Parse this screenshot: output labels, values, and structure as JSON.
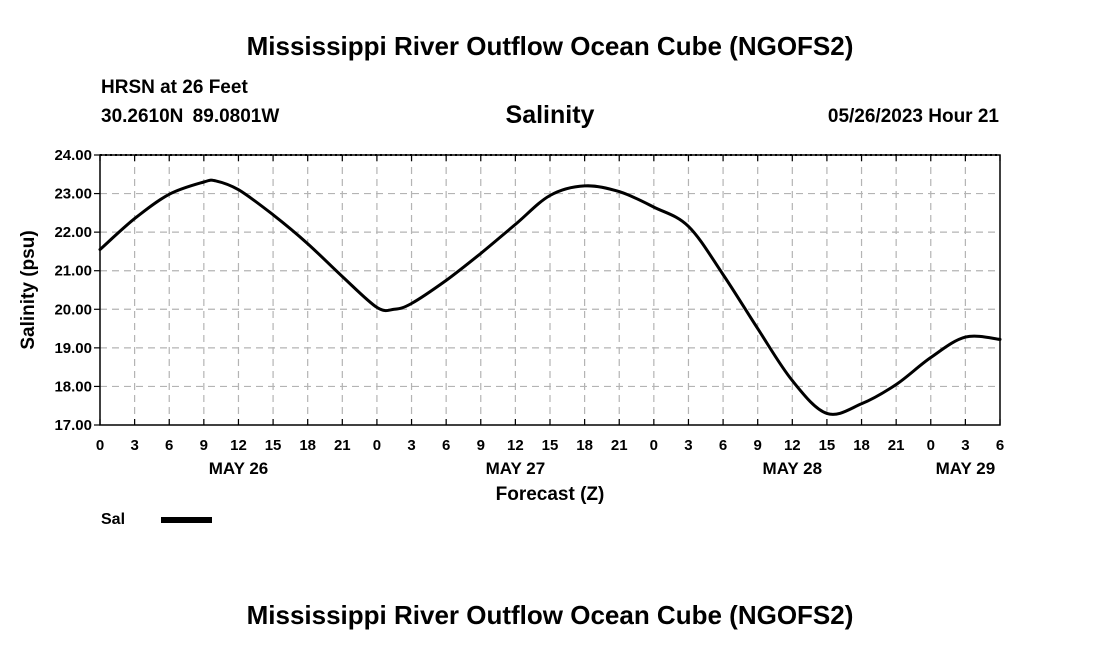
{
  "header": {
    "title": "Mississippi River Outflow Ocean Cube (NGOFS2)",
    "station": "HRSN at 26 Feet",
    "coords": "30.2610N  89.0801W",
    "subtitle": "Salinity",
    "forecast_time": "05/26/2023 Hour 21"
  },
  "footer": {
    "title": "Mississippi River Outflow Ocean Cube (NGOFS2)"
  },
  "legend": {
    "label": "Sal"
  },
  "colors": {
    "line": "#000000",
    "grid": "#b4b4b4",
    "background": "#ffffff"
  },
  "chart_data": {
    "type": "line",
    "title": "Salinity",
    "xlabel": "Forecast (Z)",
    "ylabel": "Salinity (psu)",
    "ylim": [
      17.0,
      24.0
    ],
    "xlim_hours": [
      0,
      78
    ],
    "y_ticks": [
      17.0,
      18.0,
      19.0,
      20.0,
      21.0,
      22.0,
      23.0,
      24.0
    ],
    "y_tick_labels": [
      "17.00",
      "18.00",
      "19.00",
      "20.00",
      "21.00",
      "22.00",
      "23.00",
      "24.00"
    ],
    "x_tick_hours": [
      0,
      3,
      6,
      9,
      12,
      15,
      18,
      21,
      24,
      27,
      30,
      33,
      36,
      39,
      42,
      45,
      48,
      51,
      54,
      57,
      60,
      63,
      66,
      69,
      72,
      75,
      78
    ],
    "x_tick_labels": [
      "0",
      "3",
      "6",
      "9",
      "12",
      "15",
      "18",
      "21",
      "0",
      "3",
      "6",
      "9",
      "12",
      "15",
      "18",
      "21",
      "0",
      "3",
      "6",
      "9",
      "12",
      "15",
      "18",
      "21",
      "0",
      "3",
      "6"
    ],
    "date_labels": [
      {
        "hour": 12,
        "label": "MAY 26"
      },
      {
        "hour": 36,
        "label": "MAY 27"
      },
      {
        "hour": 60,
        "label": "MAY 28"
      },
      {
        "hour": 75,
        "label": "MAY 29"
      }
    ],
    "grid": true,
    "series": [
      {
        "name": "Sal",
        "x_hours": [
          0,
          3,
          6,
          9,
          10,
          12,
          15,
          18,
          21,
          24,
          25.5,
          27,
          30,
          33,
          36,
          39,
          42,
          45,
          48,
          51,
          54,
          57,
          60,
          63,
          66,
          69,
          72,
          75,
          78
        ],
        "values": [
          21.55,
          22.35,
          22.98,
          23.3,
          23.33,
          23.1,
          22.45,
          21.7,
          20.85,
          20.05,
          20.0,
          20.15,
          20.75,
          21.45,
          22.2,
          22.95,
          23.2,
          23.05,
          22.65,
          22.15,
          20.9,
          19.5,
          18.15,
          17.3,
          17.55,
          18.05,
          18.75,
          19.28,
          19.22
        ]
      }
    ]
  },
  "axis_labels": {
    "x": "Forecast (Z)",
    "y": "Salinity (psu)"
  }
}
